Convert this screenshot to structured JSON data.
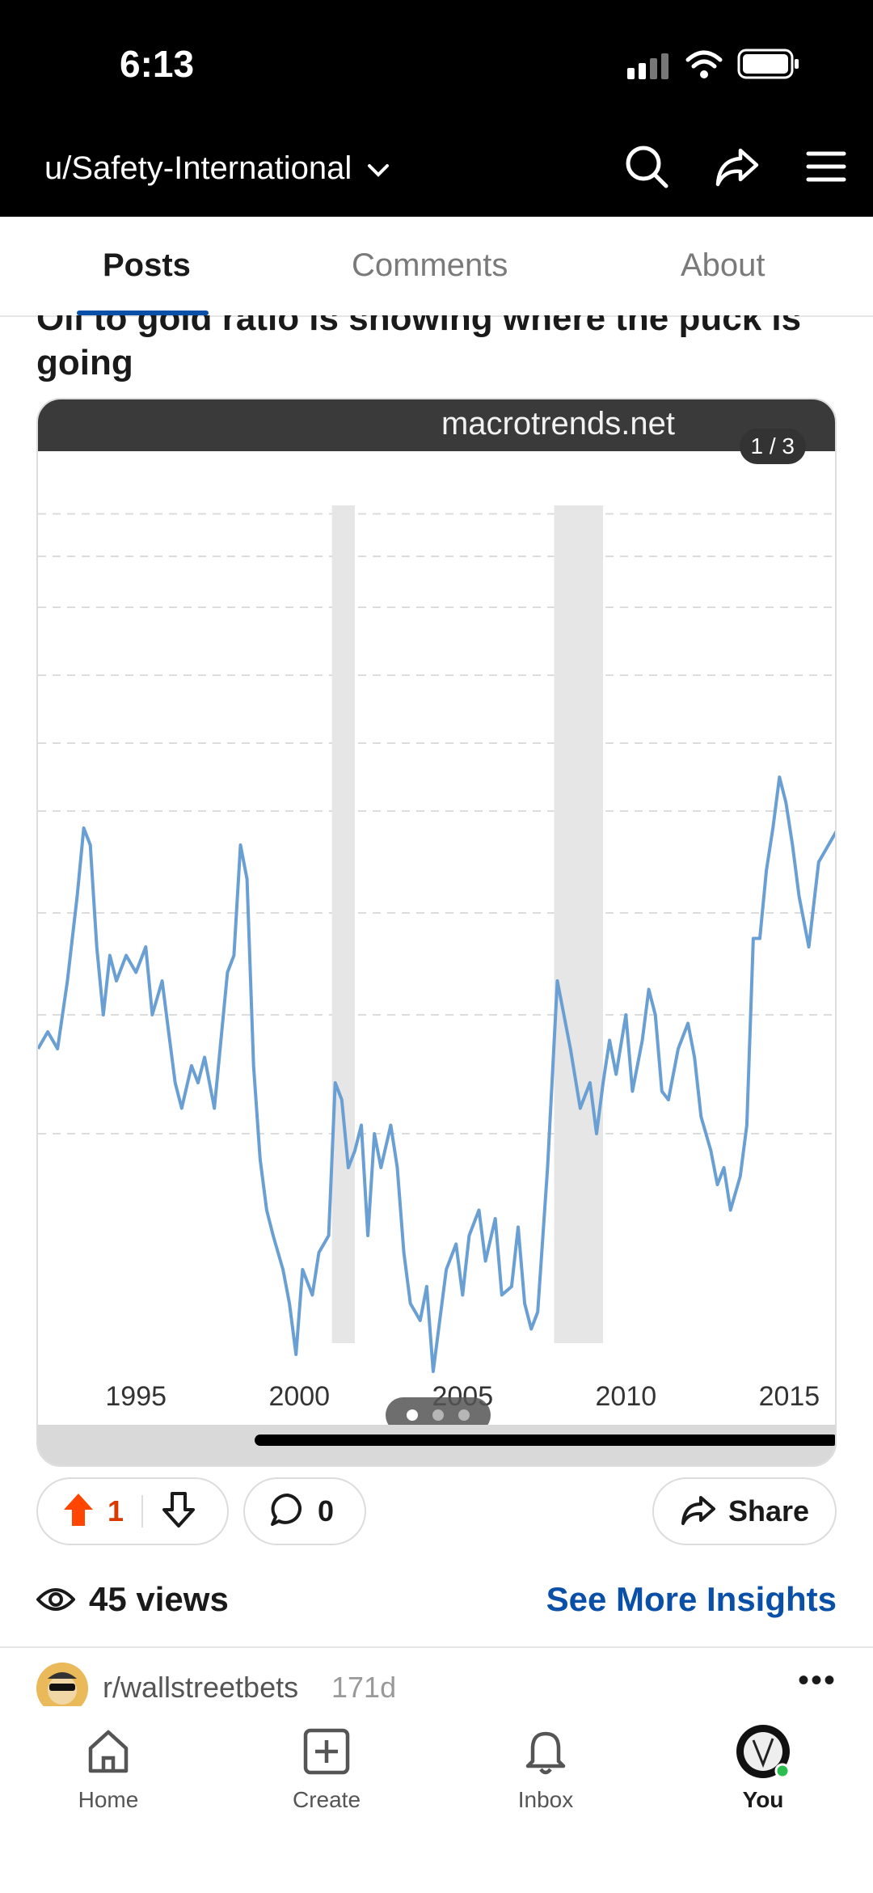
{
  "status": {
    "time": "6:13"
  },
  "appbar": {
    "username": "u/Safety-International"
  },
  "tabs": [
    {
      "label": "Posts",
      "active": true
    },
    {
      "label": "Comments",
      "active": false
    },
    {
      "label": "About",
      "active": false
    }
  ],
  "post": {
    "title": "Oil to gold ratio is showing where the puck is going",
    "media": {
      "watermark": "macrotrends.net",
      "counter": "1 / 3",
      "page_index": 1,
      "page_count": 3
    },
    "upvotes": "1",
    "comments": "0",
    "share_label": "Share",
    "views": "45 views",
    "insights_label": "See More Insights"
  },
  "next_post": {
    "subreddit": "r/wallstreetbets",
    "age": "171d"
  },
  "bottom_nav": [
    {
      "label": "Home",
      "icon": "home-icon"
    },
    {
      "label": "Create",
      "icon": "create-icon"
    },
    {
      "label": "Inbox",
      "icon": "bell-icon"
    },
    {
      "label": "You",
      "icon": "avatar-icon",
      "active": true
    }
  ],
  "colors": {
    "accent": "#0a4fa8",
    "upvote": "#d93a00",
    "line": "#6a9fd4",
    "recession": "#e6e6e6"
  },
  "chart_data": {
    "type": "line",
    "x_tick_labels": [
      "1995",
      "2000",
      "2005",
      "2010",
      "2015"
    ],
    "xlim": [
      1992.0,
      2016.5
    ],
    "ylim": [
      0.0,
      1.0
    ],
    "grid": true,
    "shaded_ranges": [
      [
        2001.0,
        2001.7
      ],
      [
        2007.8,
        2009.3
      ]
    ],
    "series": [
      {
        "values": [
          [
            1992.0,
            0.34
          ],
          [
            1992.3,
            0.36
          ],
          [
            1992.6,
            0.34
          ],
          [
            1992.9,
            0.42
          ],
          [
            1993.2,
            0.52
          ],
          [
            1993.4,
            0.6
          ],
          [
            1993.6,
            0.58
          ],
          [
            1993.8,
            0.46
          ],
          [
            1994.0,
            0.38
          ],
          [
            1994.2,
            0.45
          ],
          [
            1994.4,
            0.42
          ],
          [
            1994.7,
            0.45
          ],
          [
            1995.0,
            0.43
          ],
          [
            1995.3,
            0.46
          ],
          [
            1995.5,
            0.38
          ],
          [
            1995.8,
            0.42
          ],
          [
            1996.0,
            0.36
          ],
          [
            1996.2,
            0.3
          ],
          [
            1996.4,
            0.27
          ],
          [
            1996.7,
            0.32
          ],
          [
            1996.9,
            0.3
          ],
          [
            1997.1,
            0.33
          ],
          [
            1997.4,
            0.27
          ],
          [
            1997.6,
            0.35
          ],
          [
            1997.8,
            0.43
          ],
          [
            1998.0,
            0.45
          ],
          [
            1998.2,
            0.58
          ],
          [
            1998.4,
            0.54
          ],
          [
            1998.6,
            0.32
          ],
          [
            1998.8,
            0.21
          ],
          [
            1999.0,
            0.15
          ],
          [
            1999.2,
            0.12
          ],
          [
            1999.5,
            0.08
          ],
          [
            1999.7,
            0.04
          ],
          [
            1999.9,
            -0.02
          ],
          [
            2000.1,
            0.08
          ],
          [
            2000.4,
            0.05
          ],
          [
            2000.6,
            0.1
          ],
          [
            2000.9,
            0.12
          ],
          [
            2001.1,
            0.3
          ],
          [
            2001.3,
            0.28
          ],
          [
            2001.5,
            0.2
          ],
          [
            2001.7,
            0.22
          ],
          [
            2001.9,
            0.25
          ],
          [
            2002.1,
            0.12
          ],
          [
            2002.3,
            0.24
          ],
          [
            2002.5,
            0.2
          ],
          [
            2002.8,
            0.25
          ],
          [
            2003.0,
            0.2
          ],
          [
            2003.2,
            0.1
          ],
          [
            2003.4,
            0.04
          ],
          [
            2003.7,
            0.02
          ],
          [
            2003.9,
            0.06
          ],
          [
            2004.1,
            -0.04
          ],
          [
            2004.3,
            0.02
          ],
          [
            2004.5,
            0.08
          ],
          [
            2004.8,
            0.11
          ],
          [
            2005.0,
            0.05
          ],
          [
            2005.2,
            0.12
          ],
          [
            2005.5,
            0.15
          ],
          [
            2005.7,
            0.09
          ],
          [
            2006.0,
            0.14
          ],
          [
            2006.2,
            0.05
          ],
          [
            2006.5,
            0.06
          ],
          [
            2006.7,
            0.13
          ],
          [
            2006.9,
            0.04
          ],
          [
            2007.1,
            0.01
          ],
          [
            2007.3,
            0.03
          ],
          [
            2007.6,
            0.2
          ],
          [
            2007.9,
            0.42
          ],
          [
            2008.1,
            0.38
          ],
          [
            2008.3,
            0.34
          ],
          [
            2008.6,
            0.27
          ],
          [
            2008.9,
            0.3
          ],
          [
            2009.1,
            0.24
          ],
          [
            2009.3,
            0.3
          ],
          [
            2009.5,
            0.35
          ],
          [
            2009.7,
            0.31
          ],
          [
            2010.0,
            0.38
          ],
          [
            2010.2,
            0.29
          ],
          [
            2010.5,
            0.35
          ],
          [
            2010.7,
            0.41
          ],
          [
            2010.9,
            0.38
          ],
          [
            2011.1,
            0.29
          ],
          [
            2011.3,
            0.28
          ],
          [
            2011.6,
            0.34
          ],
          [
            2011.9,
            0.37
          ],
          [
            2012.1,
            0.33
          ],
          [
            2012.3,
            0.26
          ],
          [
            2012.6,
            0.22
          ],
          [
            2012.8,
            0.18
          ],
          [
            2013.0,
            0.2
          ],
          [
            2013.2,
            0.15
          ],
          [
            2013.5,
            0.19
          ],
          [
            2013.7,
            0.25
          ],
          [
            2013.9,
            0.47
          ],
          [
            2014.1,
            0.47
          ],
          [
            2014.3,
            0.55
          ],
          [
            2014.5,
            0.6
          ],
          [
            2014.7,
            0.66
          ],
          [
            2014.9,
            0.63
          ],
          [
            2015.1,
            0.58
          ],
          [
            2015.3,
            0.52
          ],
          [
            2015.6,
            0.46
          ],
          [
            2015.9,
            0.56
          ],
          [
            2016.2,
            0.58
          ],
          [
            2016.5,
            0.6
          ]
        ]
      }
    ]
  }
}
